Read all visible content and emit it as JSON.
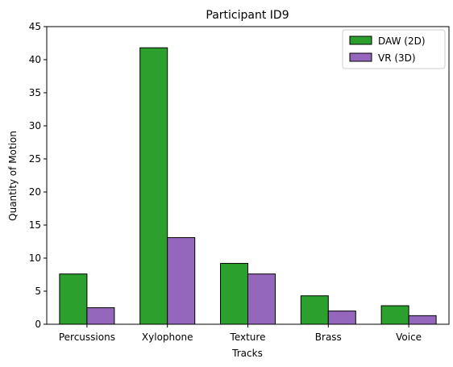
{
  "chart_data": {
    "type": "bar",
    "title": "Participant ID9",
    "xlabel": "Tracks",
    "ylabel": "Quantity of Motion",
    "categories": [
      "Percussions",
      "Xylophone",
      "Texture",
      "Brass",
      "Voice"
    ],
    "series": [
      {
        "name": "DAW (2D)",
        "color": "#2ca02c",
        "values": [
          7.6,
          41.8,
          9.2,
          4.3,
          2.8
        ]
      },
      {
        "name": "VR (3D)",
        "color": "#9467bd",
        "values": [
          2.5,
          13.1,
          7.6,
          2.0,
          1.3
        ]
      }
    ],
    "ylim": [
      0,
      45
    ],
    "yticks": [
      0,
      5,
      10,
      15,
      20,
      25,
      30,
      35,
      40,
      45
    ],
    "grid": false,
    "legend_position": "top-right"
  }
}
